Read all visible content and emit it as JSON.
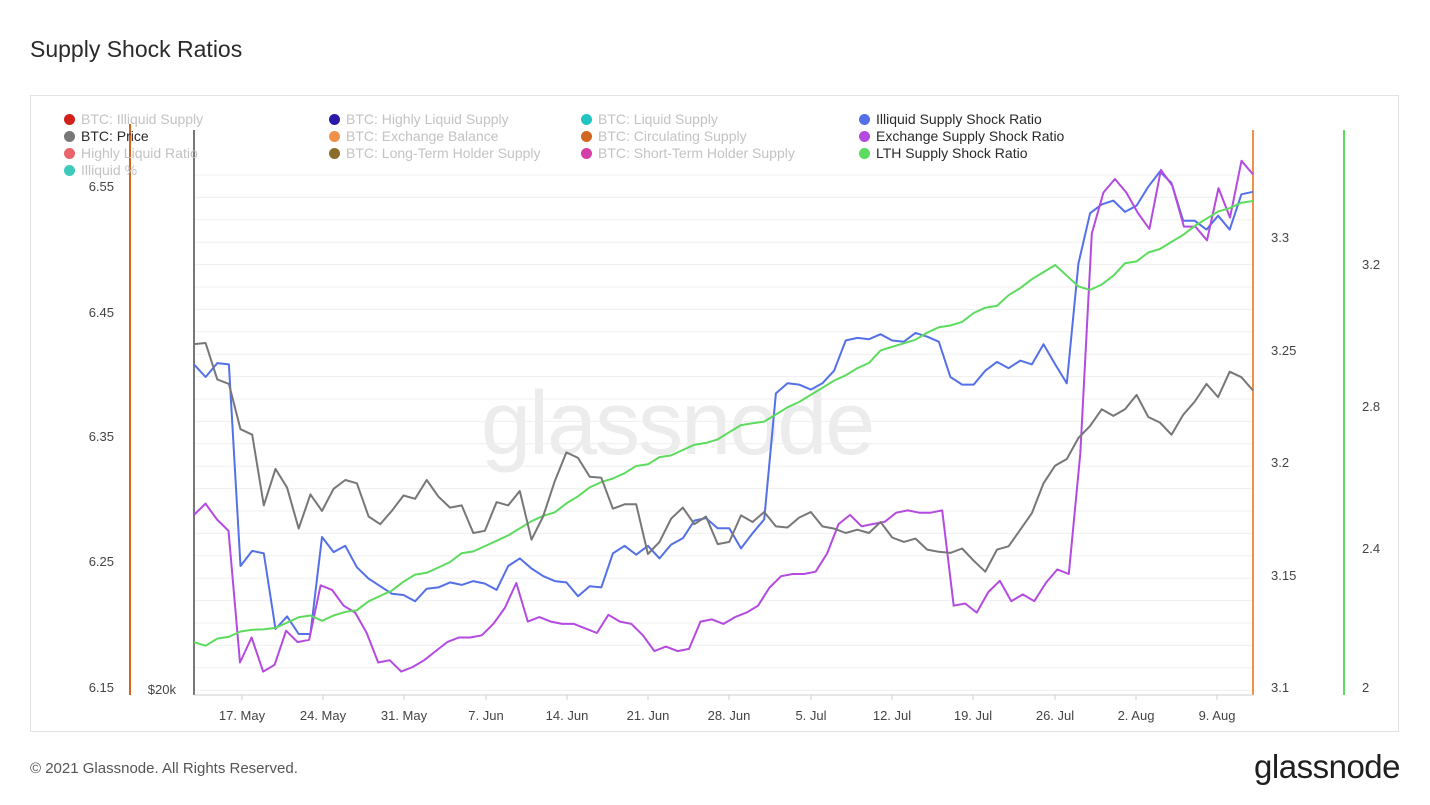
{
  "title": "Supply Shock Ratios",
  "footer": "© 2021 Glassnode. All Rights Reserved.",
  "brand": "glassnode",
  "watermark": "glassnode",
  "legend": [
    {
      "label": "BTC: Illiquid Supply",
      "color": "#d0201b",
      "active": false,
      "col": 0,
      "row": 0
    },
    {
      "label": "BTC: Price",
      "color": "#777777",
      "active": true,
      "col": 0,
      "row": 1
    },
    {
      "label": "Highly Liquid Ratio",
      "color": "#e9646b",
      "active": false,
      "col": 0,
      "row": 2
    },
    {
      "label": "Illiquid %",
      "color": "#3ec9bd",
      "active": false,
      "col": 0,
      "row": 3
    },
    {
      "label": "BTC: Highly Liquid Supply",
      "color": "#2a1aa8",
      "active": false,
      "col": 1,
      "row": 0
    },
    {
      "label": "BTC: Exchange Balance",
      "color": "#f0914a",
      "active": false,
      "col": 1,
      "row": 1
    },
    {
      "label": "BTC: Long-Term Holder Supply",
      "color": "#8d6c2a",
      "active": false,
      "col": 1,
      "row": 2
    },
    {
      "label": "BTC: Liquid Supply",
      "color": "#22c3c3",
      "active": false,
      "col": 2,
      "row": 0
    },
    {
      "label": "BTC: Circulating Supply",
      "color": "#d2651f",
      "active": false,
      "col": 2,
      "row": 1
    },
    {
      "label": "BTC: Short-Term Holder Supply",
      "color": "#d43fa6",
      "active": false,
      "col": 2,
      "row": 2
    },
    {
      "label": "Illiquid Supply Shock Ratio",
      "color": "#5470e8",
      "active": true,
      "col": 3,
      "row": 0
    },
    {
      "label": "Exchange Supply Shock Ratio",
      "color": "#b44ae0",
      "active": true,
      "col": 3,
      "row": 1
    },
    {
      "label": "LTH Supply Shock Ratio",
      "color": "#5ddb5e",
      "active": true,
      "col": 3,
      "row": 2
    }
  ],
  "chart_data": {
    "type": "line",
    "title": "Supply Shock Ratios",
    "x_ticks": [
      "17. May",
      "24. May",
      "31. May",
      "7. Jun",
      "14. Jun",
      "21. Jun",
      "28. Jun",
      "5. Jul",
      "12. Jul",
      "19. Jul",
      "26. Jul",
      "2. Aug",
      "9. Aug"
    ],
    "x_range": [
      "2021-05-12",
      "2021-08-13"
    ],
    "axes": {
      "left_illiquid": {
        "ticks": [
          "6.55",
          "6.45",
          "6.35",
          "6.25",
          "6.15"
        ],
        "range": [
          6.15,
          6.55
        ],
        "color": "#5470e8"
      },
      "price": {
        "ticks": [
          "$20k"
        ],
        "color": "#777777"
      },
      "right_exchange": {
        "ticks": [
          "3.3",
          "3.25",
          "3.2",
          "3.15",
          "3.1"
        ],
        "range": [
          3.1,
          3.3
        ],
        "color": "#b44ae0"
      },
      "right_lth": {
        "ticks": [
          "3.2",
          "2.8",
          "2.4",
          "2"
        ],
        "range": [
          2.0,
          3.2
        ],
        "color": "#5ddb5e"
      }
    },
    "series": [
      {
        "name": "Illiquid Supply Shock Ratio",
        "color": "#5470e8",
        "axis": "left_illiquid",
        "values": [
          6.41,
          6.4,
          6.411,
          6.41,
          6.25,
          6.262,
          6.26,
          6.2,
          6.21,
          6.196,
          6.196,
          6.273,
          6.261,
          6.266,
          6.249,
          6.24,
          6.234,
          6.228,
          6.227,
          6.222,
          6.232,
          6.233,
          6.237,
          6.235,
          6.238,
          6.236,
          6.231,
          6.25,
          6.256,
          6.248,
          6.242,
          6.238,
          6.237,
          6.226,
          6.234,
          6.233,
          6.26,
          6.266,
          6.259,
          6.266,
          6.256,
          6.267,
          6.272,
          6.286,
          6.288,
          6.28,
          6.28,
          6.264,
          6.276,
          6.287,
          6.387,
          6.395,
          6.394,
          6.39,
          6.395,
          6.405,
          6.429,
          6.431,
          6.43,
          6.434,
          6.429,
          6.428,
          6.435,
          6.432,
          6.428,
          6.4,
          6.394,
          6.394,
          6.405,
          6.412,
          6.407,
          6.413,
          6.41,
          6.426,
          6.41,
          6.395,
          6.49,
          6.53,
          6.537,
          6.54,
          6.531,
          6.536,
          6.551,
          6.563,
          6.554,
          6.524,
          6.524,
          6.517,
          6.528,
          6.517,
          6.545,
          6.547
        ]
      },
      {
        "name": "Exchange Supply Shock Ratio",
        "color": "#b44ae0",
        "axis": "right_exchange",
        "values": [
          3.178,
          3.183,
          3.176,
          3.171,
          3.113,
          3.124,
          3.109,
          3.112,
          3.127,
          3.122,
          3.123,
          3.147,
          3.145,
          3.138,
          3.135,
          3.126,
          3.113,
          3.114,
          3.109,
          3.111,
          3.114,
          3.118,
          3.122,
          3.124,
          3.124,
          3.125,
          3.13,
          3.137,
          3.148,
          3.131,
          3.133,
          3.131,
          3.13,
          3.13,
          3.128,
          3.126,
          3.134,
          3.131,
          3.13,
          3.125,
          3.118,
          3.12,
          3.118,
          3.119,
          3.131,
          3.132,
          3.13,
          3.133,
          3.135,
          3.138,
          3.146,
          3.151,
          3.152,
          3.152,
          3.153,
          3.161,
          3.174,
          3.178,
          3.173,
          3.174,
          3.175,
          3.179,
          3.18,
          3.179,
          3.179,
          3.18,
          3.138,
          3.139,
          3.135,
          3.144,
          3.149,
          3.14,
          3.143,
          3.14,
          3.148,
          3.154,
          3.152,
          3.205,
          3.302,
          3.32,
          3.326,
          3.32,
          3.311,
          3.304,
          3.33,
          3.323,
          3.305,
          3.305,
          3.299,
          3.322,
          3.309,
          3.334,
          3.328
        ]
      },
      {
        "name": "LTH Supply Shock Ratio",
        "color": "#5ddb5e",
        "axis": "right_lth",
        "values": [
          2.14,
          2.13,
          2.15,
          2.155,
          2.17,
          2.175,
          2.176,
          2.18,
          2.195,
          2.21,
          2.215,
          2.2,
          2.215,
          2.225,
          2.23,
          2.255,
          2.27,
          2.285,
          2.31,
          2.33,
          2.335,
          2.35,
          2.365,
          2.39,
          2.395,
          2.41,
          2.425,
          2.44,
          2.46,
          2.48,
          2.495,
          2.505,
          2.53,
          2.55,
          2.575,
          2.59,
          2.6,
          2.615,
          2.635,
          2.64,
          2.66,
          2.665,
          2.68,
          2.695,
          2.7,
          2.71,
          2.73,
          2.75,
          2.755,
          2.76,
          2.78,
          2.8,
          2.815,
          2.835,
          2.855,
          2.875,
          2.89,
          2.91,
          2.925,
          2.96,
          2.97,
          2.98,
          2.99,
          3.01,
          3.025,
          3.03,
          3.04,
          3.065,
          3.08,
          3.085,
          3.115,
          3.135,
          3.16,
          3.18,
          3.2,
          3.17,
          3.14,
          3.13,
          3.145,
          3.17,
          3.205,
          3.21,
          3.235,
          3.245,
          3.265,
          3.285,
          3.31,
          3.33,
          3.35,
          3.36,
          3.375,
          3.38
        ]
      },
      {
        "name": "BTC: Price",
        "color": "#777777",
        "axis": "price",
        "values": [
          50400,
          50500,
          47200,
          46800,
          42700,
          42200,
          35800,
          39100,
          37400,
          33700,
          36800,
          35300,
          37300,
          38100,
          37800,
          34800,
          34100,
          35300,
          36700,
          36400,
          38100,
          36600,
          35600,
          35800,
          33300,
          33500,
          36100,
          35800,
          37100,
          32700,
          34800,
          38000,
          40600,
          40100,
          38400,
          38300,
          35500,
          35900,
          35900,
          31400,
          32500,
          34600,
          35600,
          34100,
          34800,
          32300,
          32500,
          34900,
          34300,
          35200,
          33900,
          33800,
          34700,
          35200,
          33900,
          33700,
          33300,
          33600,
          33300,
          34300,
          32900,
          32500,
          32800,
          31800,
          31600,
          31500,
          31900,
          30800,
          29800,
          31800,
          32100,
          33600,
          35100,
          37800,
          39400,
          40000,
          41900,
          43000,
          44500,
          43900,
          44500,
          45800,
          43800,
          43300,
          42200,
          44000,
          45200,
          46800,
          45600,
          47900,
          47400,
          46200
        ]
      }
    ],
    "grid": true,
    "legend_position": "top"
  }
}
